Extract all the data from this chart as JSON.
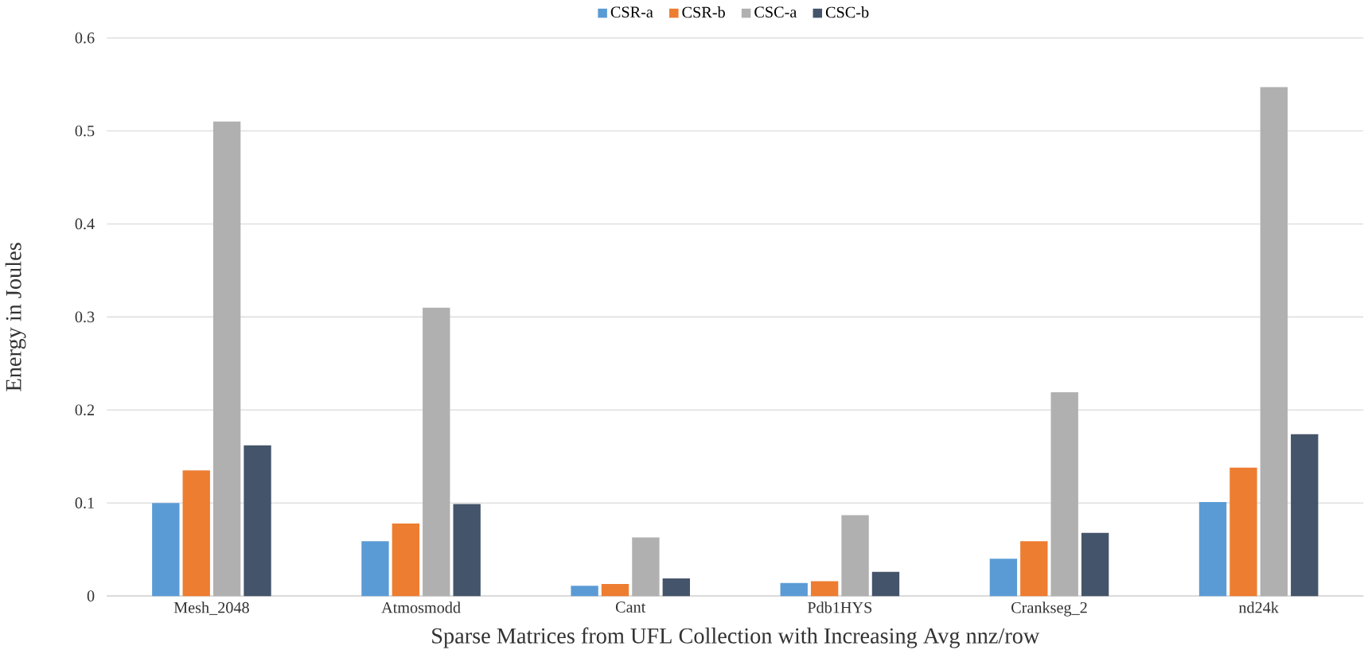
{
  "chart_data": {
    "type": "bar",
    "xlabel": "Sparse Matrices from UFL Collection with Increasing Avg nnz/row",
    "ylabel": "Energy in Joules",
    "categories": [
      "Mesh_2048",
      "Atmosmodd",
      "Cant",
      "Pdb1HYS",
      "Crankseg_2",
      "nd24k"
    ],
    "series": [
      {
        "name": "CSR-a",
        "color": "#5b9bd5",
        "values": [
          0.1,
          0.059,
          0.011,
          0.014,
          0.04,
          0.101
        ]
      },
      {
        "name": "CSR-b",
        "color": "#ed7d31",
        "values": [
          0.135,
          0.078,
          0.013,
          0.016,
          0.059,
          0.138
        ]
      },
      {
        "name": "CSC-a",
        "color": "#b0b0b0",
        "values": [
          0.51,
          0.31,
          0.063,
          0.087,
          0.219,
          0.547
        ]
      },
      {
        "name": "CSC-b",
        "color": "#44546a",
        "values": [
          0.162,
          0.099,
          0.019,
          0.026,
          0.068,
          0.174
        ]
      }
    ],
    "ylim": [
      0,
      0.6
    ],
    "yticks": [
      0,
      0.1,
      0.2,
      0.3,
      0.4,
      0.5,
      0.6
    ],
    "grid": "y",
    "legend": "top"
  }
}
